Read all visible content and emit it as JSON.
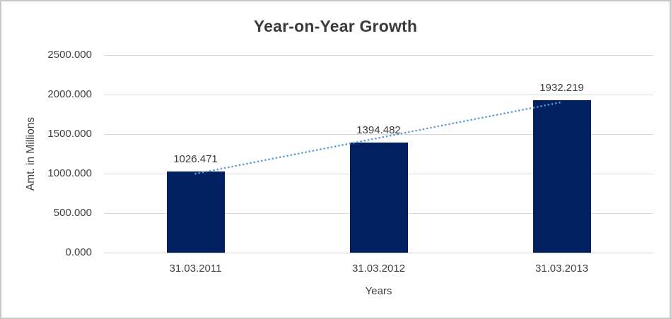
{
  "chart_data": {
    "type": "bar",
    "title": "Year-on-Year Growth",
    "xlabel": "Years",
    "ylabel": "Amt. in Millions",
    "categories": [
      "31.03.2011",
      "31.03.2012",
      "31.03.2013"
    ],
    "values": [
      1026.471,
      1394.482,
      1932.219
    ],
    "value_labels": [
      "1026.471",
      "1394.482",
      "1932.219"
    ],
    "y_ticks": [
      0,
      500,
      1000,
      1500,
      2000,
      2500
    ],
    "y_tick_labels": [
      "0.000",
      "500.000",
      "1000.000",
      "1500.000",
      "2000.000",
      "2500.000"
    ],
    "ylim": [
      0,
      2500
    ],
    "grid": true,
    "legend": "none",
    "trendline": {
      "kind": "linear",
      "style": "dotted"
    },
    "colors": {
      "bar": "#002060",
      "trendline": "#5b9bd5",
      "gridline": "#d9d9d9",
      "axis_line": "#d0d0d0",
      "text": "#404040",
      "title_text": "#3b3b3b",
      "border": "#c8c8c8",
      "background": "#ffffff"
    }
  }
}
